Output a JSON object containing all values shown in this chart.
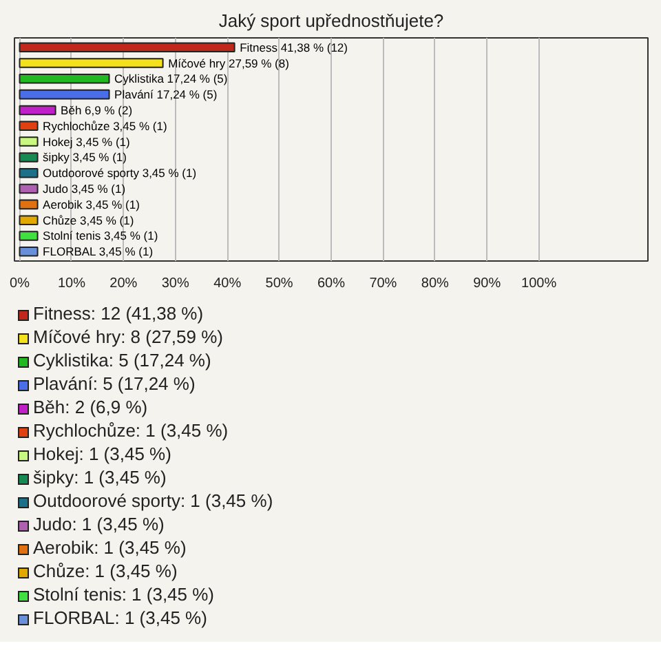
{
  "chart_data": {
    "type": "bar",
    "orientation": "horizontal",
    "title": "Jaký sport upřednostňujete?",
    "categories": [
      null,
      null,
      null,
      null,
      null,
      null,
      null,
      null,
      null,
      null,
      null,
      null,
      null,
      null
    ],
    "annotations": [
      "Fitness: 12 (41,38 %)",
      "Míčové hry: 8 (27,59 %)",
      "Cyklistika: 5 (17,24 %)",
      "Plavání: 5 (17,24 %)",
      "Běh: 2 (6,9 %)",
      "Rychlochůze: 1 (3,45 %)",
      "Hokej: 1 (3,45 %)",
      "šipky: 1 (3,45 %)",
      "Outdoorové sporty: 1 (3,45 %)",
      "Judo: 1 (3,45 %)",
      "Aerobik: 1 (3,45 %)",
      "Chůze: 1 (3,45 %)",
      "Stolní tenis: 1 (3,45 %)",
      "FLORBAL: 1 (3,45 %)"
    ],
    "values": [
      41.38,
      27.59,
      17.24,
      17.24,
      6.9,
      3.45,
      3.45,
      3.45,
      3.45,
      3.45,
      3.45,
      3.45,
      3.45,
      3.45
    ],
    "colors": [
      "#c0281c",
      "#f4e01c",
      "#22b822",
      "#4a6ee8",
      "#c020c8",
      "#e04010",
      "#c8f880",
      "#168a50",
      "#1c7088",
      "#b060b0",
      "#e07010",
      "#e0a800",
      "#40e040",
      "#6890d8"
    ],
    "value_labels": [
      "Fitness 41,38 % (12)",
      "Míčové hry 27,59 % (8)",
      "Cyklistika 17,24 % (5)",
      "Plavání 17,24 % (5)",
      "Běh 6,9 % (2)",
      "Rychlochůze 3,45 % (1)",
      "Hokej 3,45 % (1)",
      "šipky 3,45 % (1)",
      "Outdoorové sporty 3,45 % (1)",
      "Judo 3,45 % (1)",
      "Aerobik 3,45 % (1)",
      "Chůze 3,45 % (1)",
      "Stolní tenis 3,45 % (1)",
      "FLORBAL 3,45 % (1)"
    ],
    "xlim": [
      -1,
      121
    ],
    "xticks": [
      {
        "value": 0,
        "label": "0%"
      },
      {
        "value": 10,
        "label": "10%"
      },
      {
        "value": 20,
        "label": "20%"
      },
      {
        "value": 30,
        "label": "30%"
      },
      {
        "value": 40,
        "label": "40%"
      },
      {
        "value": 50,
        "label": "50%"
      },
      {
        "value": 60,
        "label": "60%"
      },
      {
        "value": 70,
        "label": "70%"
      },
      {
        "value": 80,
        "label": "80%"
      },
      {
        "value": 90,
        "label": "90%"
      },
      {
        "value": 100,
        "label": "100%"
      }
    ],
    "tick_labels": "x",
    "grid": "x"
  }
}
